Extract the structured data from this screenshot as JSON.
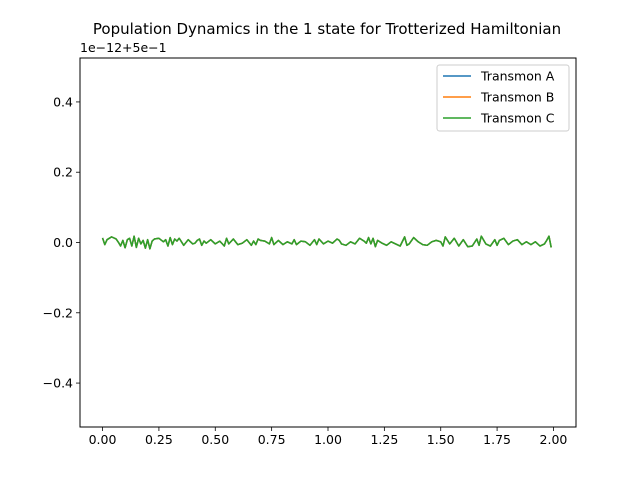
{
  "chart_data": {
    "type": "line",
    "title": "Population Dynamics in the 1 state for Trotterized Hamiltonian",
    "offset_label": "1e−12+5e−1",
    "xlabel": "",
    "ylabel": "",
    "xlim": [
      -0.1,
      2.1
    ],
    "ylim": [
      -0.525,
      0.525
    ],
    "x_ticks": [
      0.0,
      0.25,
      0.5,
      0.75,
      1.0,
      1.25,
      1.5,
      1.75,
      2.0
    ],
    "x_tick_labels": [
      "0.00",
      "0.25",
      "0.50",
      "0.75",
      "1.00",
      "1.25",
      "1.50",
      "1.75",
      "2.00"
    ],
    "y_ticks": [
      -0.4,
      -0.2,
      0.0,
      0.2,
      0.4
    ],
    "y_tick_labels": [
      "−0.4",
      "−0.2",
      "0.0",
      "0.2",
      "0.4"
    ],
    "grid": false,
    "legend_position": "top-right",
    "series": [
      {
        "name": "Transmon A",
        "color": "#1f77b4",
        "x": [
          0.0,
          0.01,
          0.02,
          0.04,
          0.06,
          0.07,
          0.08,
          0.09,
          0.1,
          0.11,
          0.12,
          0.13,
          0.14,
          0.15,
          0.16,
          0.17,
          0.18,
          0.19,
          0.2,
          0.21,
          0.22,
          0.23,
          0.25,
          0.27,
          0.28,
          0.29,
          0.3,
          0.31,
          0.32,
          0.33,
          0.34,
          0.36,
          0.38,
          0.4,
          0.41,
          0.42,
          0.43,
          0.44,
          0.45,
          0.46,
          0.48,
          0.5,
          0.52,
          0.54,
          0.55,
          0.56,
          0.58,
          0.6,
          0.62,
          0.64,
          0.66,
          0.67,
          0.68,
          0.69,
          0.7,
          0.72,
          0.74,
          0.75,
          0.76,
          0.78,
          0.8,
          0.82,
          0.84,
          0.85,
          0.86,
          0.88,
          0.9,
          0.92,
          0.94,
          0.95,
          0.96,
          0.98,
          1.0,
          1.02,
          1.04,
          1.05,
          1.06,
          1.08,
          1.1,
          1.12,
          1.14,
          1.16,
          1.17,
          1.18,
          1.19,
          1.2,
          1.21,
          1.22,
          1.24,
          1.26,
          1.28,
          1.3,
          1.32,
          1.34,
          1.35,
          1.36,
          1.38,
          1.4,
          1.42,
          1.44,
          1.46,
          1.48,
          1.5,
          1.51,
          1.52,
          1.54,
          1.56,
          1.58,
          1.6,
          1.62,
          1.64,
          1.66,
          1.67,
          1.68,
          1.7,
          1.72,
          1.74,
          1.75,
          1.76,
          1.78,
          1.8,
          1.82,
          1.84,
          1.86,
          1.88,
          1.9,
          1.92,
          1.94,
          1.96,
          1.97,
          1.98,
          1.99
        ],
        "values": [
          0.013,
          -0.006,
          0.008,
          0.016,
          0.01,
          0.001,
          -0.01,
          0.006,
          -0.015,
          0.008,
          0.012,
          -0.01,
          0.018,
          -0.014,
          0.012,
          -0.004,
          0.006,
          -0.016,
          0.008,
          -0.018,
          0.004,
          0.01,
          0.012,
          0.002,
          0.008,
          -0.01,
          0.014,
          -0.006,
          0.01,
          0.004,
          0.012,
          -0.008,
          0.008,
          -0.004,
          -0.002,
          0.006,
          0.01,
          -0.008,
          0.004,
          -0.002,
          0.008,
          -0.004,
          0.004,
          -0.01,
          0.012,
          -0.004,
          0.01,
          -0.006,
          -0.002,
          0.008,
          -0.008,
          0.004,
          -0.006,
          0.01,
          0.006,
          0.004,
          -0.004,
          0.014,
          -0.006,
          0.006,
          -0.006,
          0.002,
          -0.004,
          0.008,
          -0.006,
          0.004,
          0.002,
          -0.008,
          0.008,
          -0.006,
          0.01,
          -0.004,
          0.004,
          -0.002,
          0.01,
          0.006,
          -0.004,
          -0.008,
          0.002,
          -0.004,
          0.012,
          0.004,
          -0.002,
          0.014,
          -0.004,
          0.012,
          -0.012,
          0.006,
          -0.002,
          -0.008,
          0.002,
          -0.004,
          -0.01,
          0.016,
          -0.008,
          -0.004,
          0.014,
          0.002,
          -0.006,
          -0.008,
          0.002,
          0.006,
          0.002,
          -0.01,
          0.016,
          -0.004,
          0.012,
          -0.01,
          0.008,
          -0.012,
          -0.01,
          0.01,
          -0.008,
          0.018,
          -0.004,
          -0.01,
          0.008,
          -0.008,
          0.006,
          0.012,
          -0.006,
          0.004,
          0.008,
          -0.006,
          0.002,
          -0.006,
          0.002,
          -0.01,
          -0.004,
          0.006,
          0.018,
          -0.014
        ]
      },
      {
        "name": "Transmon B",
        "color": "#ff7f0e",
        "x": [
          0.0,
          0.01,
          0.02,
          0.04,
          0.06,
          0.07,
          0.08,
          0.09,
          0.1,
          0.11,
          0.12,
          0.13,
          0.14,
          0.15,
          0.16,
          0.17,
          0.18,
          0.19,
          0.2,
          0.21,
          0.22,
          0.23,
          0.25,
          0.27,
          0.28,
          0.29,
          0.3,
          0.31,
          0.32,
          0.33,
          0.34,
          0.36,
          0.38,
          0.4,
          0.41,
          0.42,
          0.43,
          0.44,
          0.45,
          0.46,
          0.48,
          0.5,
          0.52,
          0.54,
          0.55,
          0.56,
          0.58,
          0.6,
          0.62,
          0.64,
          0.66,
          0.67,
          0.68,
          0.69,
          0.7,
          0.72,
          0.74,
          0.75,
          0.76,
          0.78,
          0.8,
          0.82,
          0.84,
          0.85,
          0.86,
          0.88,
          0.9,
          0.92,
          0.94,
          0.95,
          0.96,
          0.98,
          1.0,
          1.02,
          1.04,
          1.05,
          1.06,
          1.08,
          1.1,
          1.12,
          1.14,
          1.16,
          1.17,
          1.18,
          1.19,
          1.2,
          1.21,
          1.22,
          1.24,
          1.26,
          1.28,
          1.3,
          1.32,
          1.34,
          1.35,
          1.36,
          1.38,
          1.4,
          1.42,
          1.44,
          1.46,
          1.48,
          1.5,
          1.51,
          1.52,
          1.54,
          1.56,
          1.58,
          1.6,
          1.62,
          1.64,
          1.66,
          1.67,
          1.68,
          1.7,
          1.72,
          1.74,
          1.75,
          1.76,
          1.78,
          1.8,
          1.82,
          1.84,
          1.86,
          1.88,
          1.9,
          1.92,
          1.94,
          1.96,
          1.97,
          1.98,
          1.99
        ],
        "values": [
          0.013,
          -0.006,
          0.008,
          0.016,
          0.01,
          0.001,
          -0.01,
          0.006,
          -0.015,
          0.008,
          0.012,
          -0.01,
          0.018,
          -0.014,
          0.012,
          -0.004,
          0.006,
          -0.016,
          0.008,
          -0.018,
          0.004,
          0.01,
          0.012,
          0.002,
          0.008,
          -0.01,
          0.014,
          -0.006,
          0.01,
          0.004,
          0.012,
          -0.008,
          0.008,
          -0.004,
          -0.002,
          0.006,
          0.01,
          -0.008,
          0.004,
          -0.002,
          0.008,
          -0.004,
          0.004,
          -0.01,
          0.012,
          -0.004,
          0.01,
          -0.006,
          -0.002,
          0.008,
          -0.008,
          0.004,
          -0.006,
          0.01,
          0.006,
          0.004,
          -0.004,
          0.014,
          -0.006,
          0.006,
          -0.006,
          0.002,
          -0.004,
          0.008,
          -0.006,
          0.004,
          0.002,
          -0.008,
          0.008,
          -0.006,
          0.01,
          -0.004,
          0.004,
          -0.002,
          0.01,
          0.006,
          -0.004,
          -0.008,
          0.002,
          -0.004,
          0.012,
          0.004,
          -0.002,
          0.014,
          -0.004,
          0.012,
          -0.012,
          0.006,
          -0.002,
          -0.008,
          0.002,
          -0.004,
          -0.01,
          0.016,
          -0.008,
          -0.004,
          0.014,
          0.002,
          -0.006,
          -0.008,
          0.002,
          0.006,
          0.002,
          -0.01,
          0.016,
          -0.004,
          0.012,
          -0.01,
          0.008,
          -0.012,
          -0.01,
          0.01,
          -0.008,
          0.018,
          -0.004,
          -0.01,
          0.008,
          -0.008,
          0.006,
          0.012,
          -0.006,
          0.004,
          0.008,
          -0.006,
          0.002,
          -0.006,
          0.002,
          -0.01,
          -0.004,
          0.006,
          0.018,
          -0.014
        ]
      },
      {
        "name": "Transmon C",
        "color": "#2ca02c",
        "x": [
          0.0,
          0.01,
          0.02,
          0.04,
          0.06,
          0.07,
          0.08,
          0.09,
          0.1,
          0.11,
          0.12,
          0.13,
          0.14,
          0.15,
          0.16,
          0.17,
          0.18,
          0.19,
          0.2,
          0.21,
          0.22,
          0.23,
          0.25,
          0.27,
          0.28,
          0.29,
          0.3,
          0.31,
          0.32,
          0.33,
          0.34,
          0.36,
          0.38,
          0.4,
          0.41,
          0.42,
          0.43,
          0.44,
          0.45,
          0.46,
          0.48,
          0.5,
          0.52,
          0.54,
          0.55,
          0.56,
          0.58,
          0.6,
          0.62,
          0.64,
          0.66,
          0.67,
          0.68,
          0.69,
          0.7,
          0.72,
          0.74,
          0.75,
          0.76,
          0.78,
          0.8,
          0.82,
          0.84,
          0.85,
          0.86,
          0.88,
          0.9,
          0.92,
          0.94,
          0.95,
          0.96,
          0.98,
          1.0,
          1.02,
          1.04,
          1.05,
          1.06,
          1.08,
          1.1,
          1.12,
          1.14,
          1.16,
          1.17,
          1.18,
          1.19,
          1.2,
          1.21,
          1.22,
          1.24,
          1.26,
          1.28,
          1.3,
          1.32,
          1.34,
          1.35,
          1.36,
          1.38,
          1.4,
          1.42,
          1.44,
          1.46,
          1.48,
          1.5,
          1.51,
          1.52,
          1.54,
          1.56,
          1.58,
          1.6,
          1.62,
          1.64,
          1.66,
          1.67,
          1.68,
          1.7,
          1.72,
          1.74,
          1.75,
          1.76,
          1.78,
          1.8,
          1.82,
          1.84,
          1.86,
          1.88,
          1.9,
          1.92,
          1.94,
          1.96,
          1.97,
          1.98,
          1.99
        ],
        "values": [
          0.013,
          -0.006,
          0.008,
          0.016,
          0.01,
          0.001,
          -0.01,
          0.006,
          -0.015,
          0.008,
          0.012,
          -0.01,
          0.018,
          -0.014,
          0.012,
          -0.004,
          0.006,
          -0.016,
          0.008,
          -0.018,
          0.004,
          0.01,
          0.012,
          0.002,
          0.008,
          -0.01,
          0.014,
          -0.006,
          0.01,
          0.004,
          0.012,
          -0.008,
          0.008,
          -0.004,
          -0.002,
          0.006,
          0.01,
          -0.008,
          0.004,
          -0.002,
          0.008,
          -0.004,
          0.004,
          -0.01,
          0.012,
          -0.004,
          0.01,
          -0.006,
          -0.002,
          0.008,
          -0.008,
          0.004,
          -0.006,
          0.01,
          0.006,
          0.004,
          -0.004,
          0.014,
          -0.006,
          0.006,
          -0.006,
          0.002,
          -0.004,
          0.008,
          -0.006,
          0.004,
          0.002,
          -0.008,
          0.008,
          -0.006,
          0.01,
          -0.004,
          0.004,
          -0.002,
          0.01,
          0.006,
          -0.004,
          -0.008,
          0.002,
          -0.004,
          0.012,
          0.004,
          -0.002,
          0.014,
          -0.004,
          0.012,
          -0.012,
          0.006,
          -0.002,
          -0.008,
          0.002,
          -0.004,
          -0.01,
          0.016,
          -0.008,
          -0.004,
          0.014,
          0.002,
          -0.006,
          -0.008,
          0.002,
          0.006,
          0.002,
          -0.01,
          0.016,
          -0.004,
          0.012,
          -0.01,
          0.008,
          -0.012,
          -0.01,
          0.01,
          -0.008,
          0.018,
          -0.004,
          -0.01,
          0.008,
          -0.008,
          0.006,
          0.012,
          -0.006,
          0.004,
          0.008,
          -0.006,
          0.002,
          -0.006,
          0.002,
          -0.01,
          -0.004,
          0.006,
          0.018,
          -0.014
        ]
      }
    ]
  }
}
